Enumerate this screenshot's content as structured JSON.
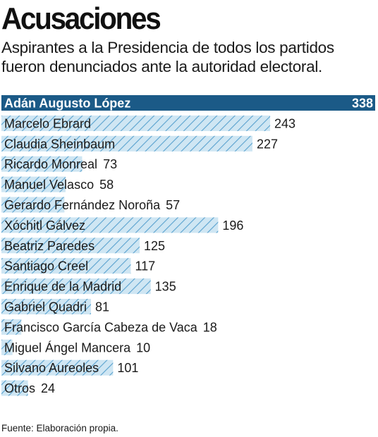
{
  "title": "Acusaciones",
  "subtitle": "Aspirantes a la Presidencia de todos los partidos fueron denunciados ante la autoridad electoral.",
  "source": "Fuente: Elaboración propia.",
  "colors": {
    "highlight_bar": "#1b5a87",
    "hatch_fill": "#cfe6f3",
    "hatch_line": "#5aa2cf",
    "text": "#1a1a1a",
    "highlight_text": "#ffffff"
  },
  "chart_data": {
    "type": "bar",
    "orientation": "horizontal",
    "title": "Acusaciones",
    "xlabel": "",
    "ylabel": "",
    "xlim": [
      0,
      338
    ],
    "grid": false,
    "legend": "none",
    "highlight_category": "Adán Augusto López",
    "categories": [
      "Adán Augusto López",
      "Marcelo Ebrard",
      "Claudia Sheinbaum",
      "Ricardo Monreal",
      "Manuel Velasco",
      "Gerardo Fernández Noroña",
      "Xóchitl Gálvez",
      "Beatriz Paredes",
      "Santiago Creel",
      "Enrique de la Madrid",
      "Gabriel Quadri",
      "Francisco García Cabeza de Vaca",
      "Miguel Ángel Mancera",
      "Silvano Aureoles",
      "Otros"
    ],
    "values": [
      338,
      243,
      227,
      73,
      58,
      57,
      196,
      125,
      117,
      135,
      81,
      18,
      10,
      101,
      24
    ]
  }
}
